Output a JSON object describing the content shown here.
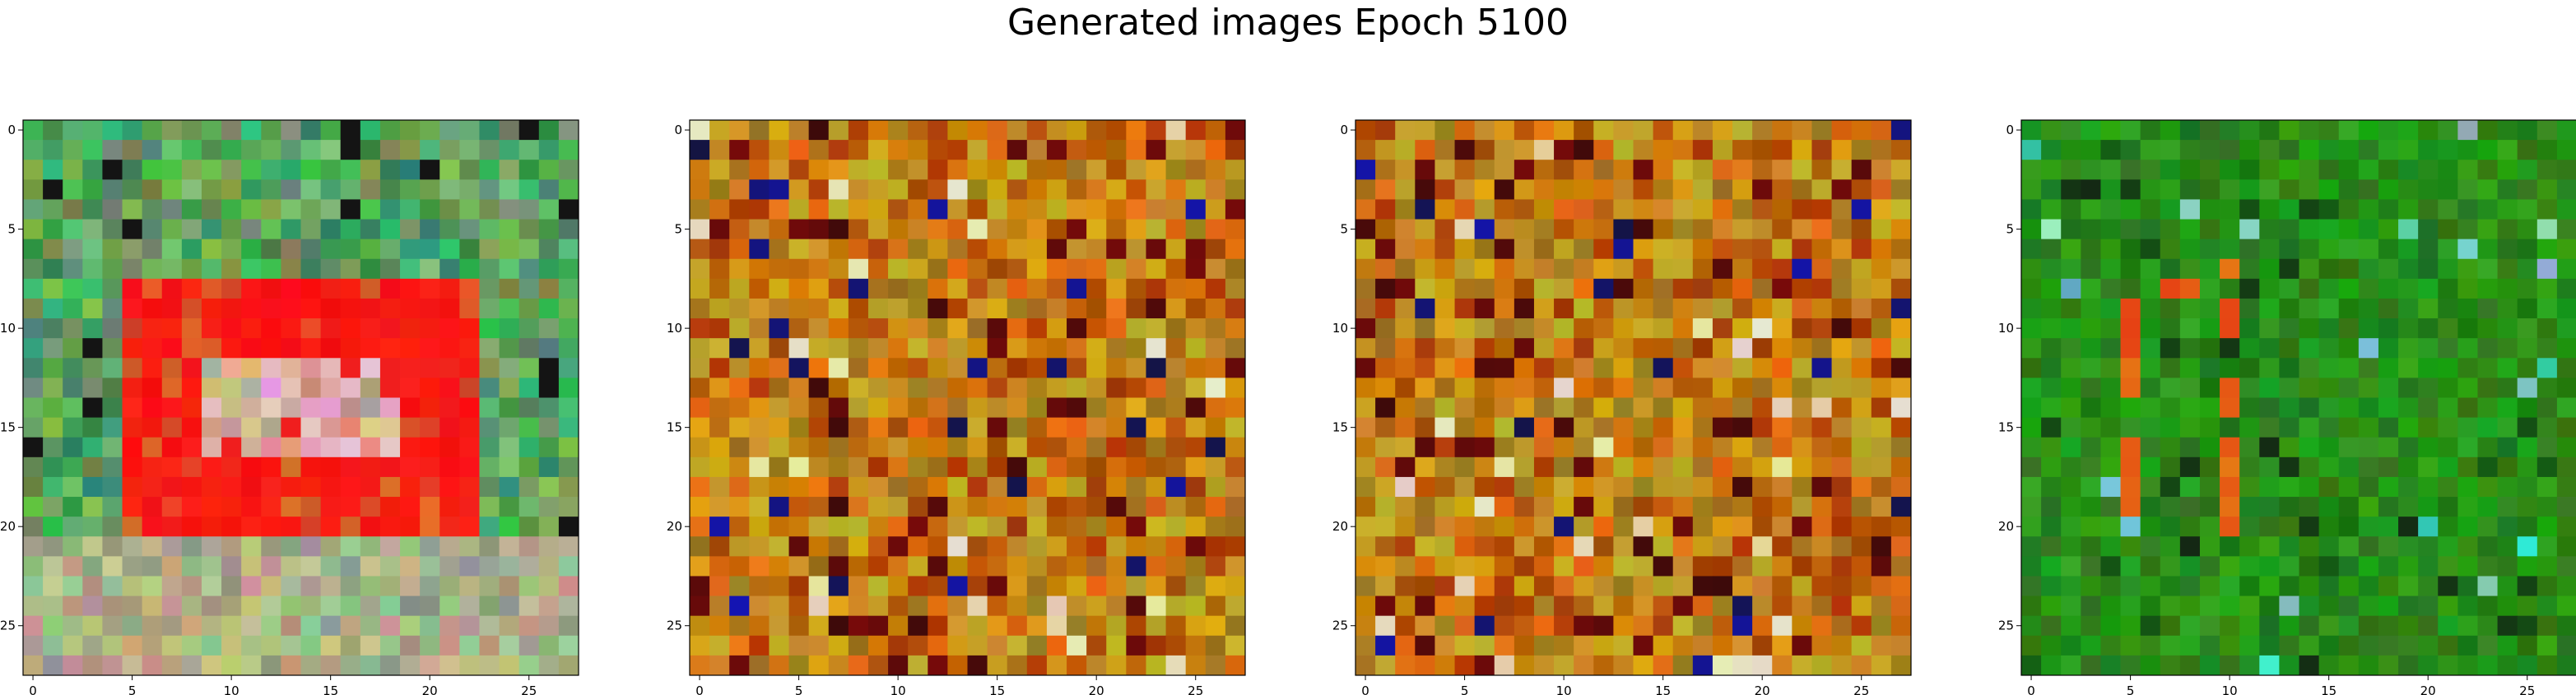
{
  "chart_data": {
    "type": "heatmap",
    "title": "Generated images Epoch 5100",
    "images": [
      {
        "name": "",
        "palette": "mixed",
        "xlim": [
          -0.5,
          27.5
        ],
        "ylim": [
          27.5,
          -0.5
        ],
        "xticks": [
          "0",
          "5",
          "10",
          "15",
          "20",
          "25"
        ],
        "yticks": [
          "0",
          "5",
          "10",
          "15",
          "20",
          "25"
        ]
      },
      {
        "name": "",
        "palette": "orange",
        "xlim": [
          -0.5,
          27.5
        ],
        "ylim": [
          27.5,
          -0.5
        ],
        "xticks": [
          "0",
          "5",
          "10",
          "15",
          "20",
          "25"
        ],
        "yticks": [
          "0",
          "5",
          "10",
          "15",
          "20",
          "25"
        ]
      },
      {
        "name": "",
        "palette": "orange",
        "xlim": [
          -0.5,
          27.5
        ],
        "ylim": [
          27.5,
          -0.5
        ],
        "xticks": [
          "0",
          "5",
          "10",
          "15",
          "20",
          "25"
        ],
        "yticks": [
          "0",
          "5",
          "10",
          "15",
          "20",
          "25"
        ]
      },
      {
        "name": "",
        "palette": "green",
        "xlim": [
          -0.5,
          27.5
        ],
        "ylim": [
          27.5,
          -0.5
        ],
        "xticks": [
          "0",
          "5",
          "10",
          "15",
          "20",
          "25"
        ],
        "yticks": [
          "0",
          "5",
          "10",
          "15",
          "20",
          "25"
        ]
      }
    ],
    "grid": false
  }
}
